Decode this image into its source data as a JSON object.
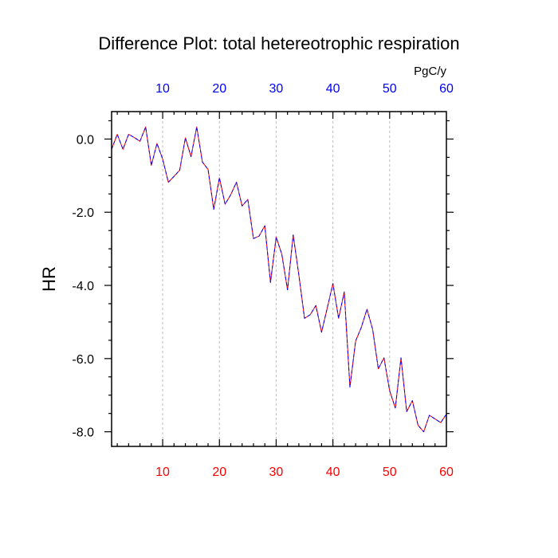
{
  "chart_data": {
    "type": "line",
    "title": "Difference Plot: total hetereotrophic respiration",
    "units_label": "PgC/y",
    "ylabel": "HR",
    "xlabel": "",
    "xlim": [
      1,
      60
    ],
    "ylim": [
      -8.4,
      0.75
    ],
    "x_ticks_major": [
      10,
      20,
      30,
      40,
      50,
      60
    ],
    "x_tick_labels_top": [
      "10",
      "20",
      "30",
      "40",
      "50",
      "60"
    ],
    "x_tick_labels_bottom": [
      "10",
      "20",
      "30",
      "40",
      "50",
      "60"
    ],
    "y_ticks_major": [
      0,
      -2,
      -4,
      -6,
      -8
    ],
    "y_tick_labels": [
      "0.0",
      "-2.0",
      "-4.0",
      "-6.0",
      "-8.0"
    ],
    "vertical_gridlines": true,
    "grid_style": "dashed",
    "colors": {
      "top_tick_labels": "#0000ff",
      "bottom_tick_labels": "#ff0000",
      "series_a": "#ff0000",
      "series_b": "#0000ff",
      "axis": "#000000",
      "grid": "#bbbbbb"
    },
    "series": [
      {
        "x": [
          1,
          2,
          3,
          4,
          5,
          6,
          7,
          8,
          9,
          10,
          11,
          12,
          13,
          14,
          15,
          16,
          17,
          18,
          19,
          20,
          21,
          22,
          23,
          24,
          25,
          26,
          27,
          28,
          29,
          30,
          31,
          32,
          33,
          34,
          35,
          36,
          37,
          38,
          39,
          40,
          41,
          42,
          43,
          44,
          45,
          46,
          47,
          48,
          49,
          50,
          51,
          52,
          53,
          54,
          55,
          56,
          57,
          58,
          59,
          60
        ],
        "values": [
          -0.28,
          0.13,
          -0.28,
          0.13,
          0.04,
          -0.06,
          0.33,
          -0.72,
          -0.12,
          -0.55,
          -1.18,
          -1.02,
          -0.85,
          0.03,
          -0.48,
          0.33,
          -0.63,
          -0.83,
          -1.92,
          -1.06,
          -1.78,
          -1.52,
          -1.18,
          -1.83,
          -1.65,
          -2.72,
          -2.65,
          -2.37,
          -3.92,
          -2.68,
          -3.15,
          -4.12,
          -2.62,
          -3.72,
          -4.9,
          -4.8,
          -4.55,
          -5.28,
          -4.62,
          -3.95,
          -4.9,
          -4.18,
          -6.78,
          -5.52,
          -5.15,
          -4.65,
          -5.2,
          -6.28,
          -5.98,
          -6.88,
          -7.35,
          -5.98,
          -7.45,
          -7.15,
          -7.82,
          -8.0,
          -7.55,
          -7.65,
          -7.75,
          -7.52
        ]
      },
      {
        "x": [
          1,
          2,
          3,
          4,
          5,
          6,
          7,
          8,
          9,
          10,
          11,
          12,
          13,
          14,
          15,
          16,
          17,
          18,
          19,
          20,
          21,
          22,
          23,
          24,
          25,
          26,
          27,
          28,
          29,
          30,
          31,
          32,
          33,
          34,
          35,
          36,
          37,
          38,
          39,
          40,
          41,
          42,
          43,
          44,
          45,
          46,
          47,
          48,
          49,
          50,
          51,
          52,
          53,
          54,
          55,
          56,
          57,
          58,
          59,
          60
        ],
        "values": [
          -0.28,
          0.13,
          -0.28,
          0.13,
          0.04,
          -0.06,
          0.33,
          -0.72,
          -0.12,
          -0.55,
          -1.18,
          -1.02,
          -0.85,
          0.03,
          -0.48,
          0.33,
          -0.63,
          -0.83,
          -1.92,
          -1.06,
          -1.78,
          -1.52,
          -1.18,
          -1.83,
          -1.65,
          -2.72,
          -2.65,
          -2.37,
          -3.92,
          -2.68,
          -3.15,
          -4.12,
          -2.62,
          -3.72,
          -4.9,
          -4.8,
          -4.55,
          -5.28,
          -4.62,
          -3.95,
          -4.9,
          -4.18,
          -6.78,
          -5.52,
          -5.15,
          -4.65,
          -5.2,
          -6.28,
          -5.98,
          -6.88,
          -7.35,
          -5.98,
          -7.45,
          -7.15,
          -7.82,
          -8.0,
          -7.55,
          -7.65,
          -7.75,
          -7.52
        ]
      }
    ]
  }
}
